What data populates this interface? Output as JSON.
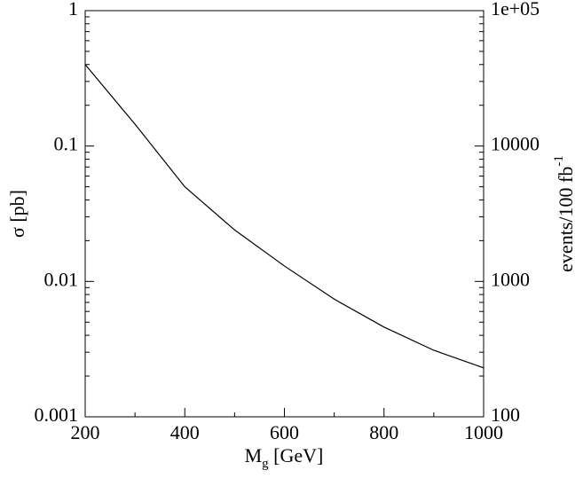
{
  "chart_data": {
    "type": "line",
    "xlabel": "M",
    "xlabel_sub": "g",
    "xlabel_rest": " [GeV]",
    "ylabel": "σ [pb]",
    "y2label": "events/100 fb",
    "y2label_sup": "-1",
    "yscale": "log",
    "y2scale": "log",
    "xlim": [
      200,
      1000
    ],
    "xticks": [
      200,
      400,
      600,
      800,
      1000
    ],
    "ylim": [
      0.001,
      1
    ],
    "yticks": [
      0.001,
      0.01,
      0.1,
      1
    ],
    "y2lim": [
      100,
      100000
    ],
    "y2ticks": [
      100,
      1000,
      10000,
      {
        "value": 100000,
        "label": "1e+05"
      }
    ],
    "series": [
      {
        "color": "#000000",
        "x": [
          200,
          300,
          400,
          500,
          600,
          700,
          800,
          900,
          1000
        ],
        "values": [
          0.4,
          0.145,
          0.05,
          0.024,
          0.013,
          0.0074,
          0.0046,
          0.0031,
          0.0023
        ]
      }
    ]
  }
}
